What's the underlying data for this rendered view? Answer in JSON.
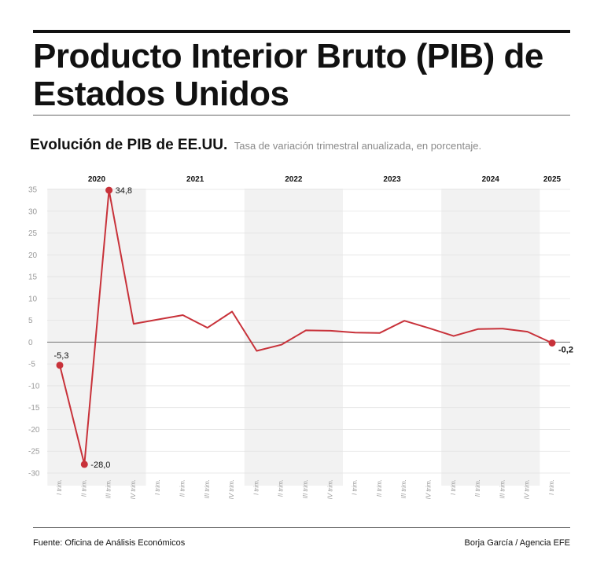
{
  "title": "Producto Interior Bruto (PIB) de Estados Unidos",
  "subtitle": "Evolución de PIB de EE.UU.",
  "subtitle_note": "Tasa de variación trimestral anualizada, en porcentaje.",
  "source": "Fuente: Oficina de Análisis Económicos",
  "credit": "Borja García / Agencia EFE",
  "colors": {
    "line": "#c8323a",
    "shaded_band": "#f2f2f2",
    "grid": "#e3e3e3",
    "zero_line": "#777777",
    "axis_text": "#9a9a9a"
  },
  "chart_data": {
    "type": "line",
    "title": "Evolución de PIB de EE.UU.",
    "xlabel": "",
    "ylabel": "",
    "ylim": [
      -30,
      35
    ],
    "yticks": [
      35,
      30,
      25,
      20,
      15,
      10,
      5,
      0,
      -5,
      -10,
      -15,
      -20,
      -25,
      -30
    ],
    "grid": true,
    "categories": [
      "I trim.",
      "II trim.",
      "III trim.",
      "IV trim.",
      "I trim.",
      "II trim.",
      "III trim.",
      "IV trim.",
      "I trim.",
      "II trim.",
      "III trim.",
      "IV trim.",
      "I trim.",
      "II trim.",
      "III trim.",
      "IV trim.",
      "I trim.",
      "II trim.",
      "III trim.",
      "IV trim.",
      "I trim."
    ],
    "years": [
      {
        "label": "2020",
        "shaded": true
      },
      {
        "label": "2021",
        "shaded": false
      },
      {
        "label": "2022",
        "shaded": true
      },
      {
        "label": "2023",
        "shaded": false
      },
      {
        "label": "2024",
        "shaded": true
      },
      {
        "label": "2025",
        "shaded": false
      }
    ],
    "values": [
      -5.3,
      -28.0,
      34.8,
      4.2,
      5.2,
      6.2,
      3.3,
      7.0,
      -2.0,
      -0.6,
      2.7,
      2.6,
      2.2,
      2.1,
      4.9,
      3.2,
      1.4,
      3.0,
      3.1,
      2.4,
      -0.2
    ],
    "labeled_points": [
      {
        "index": 0,
        "label": "-5,3"
      },
      {
        "index": 1,
        "label": "-28,0"
      },
      {
        "index": 2,
        "label": "34,8"
      },
      {
        "index": 20,
        "label": "-0,2"
      }
    ]
  }
}
